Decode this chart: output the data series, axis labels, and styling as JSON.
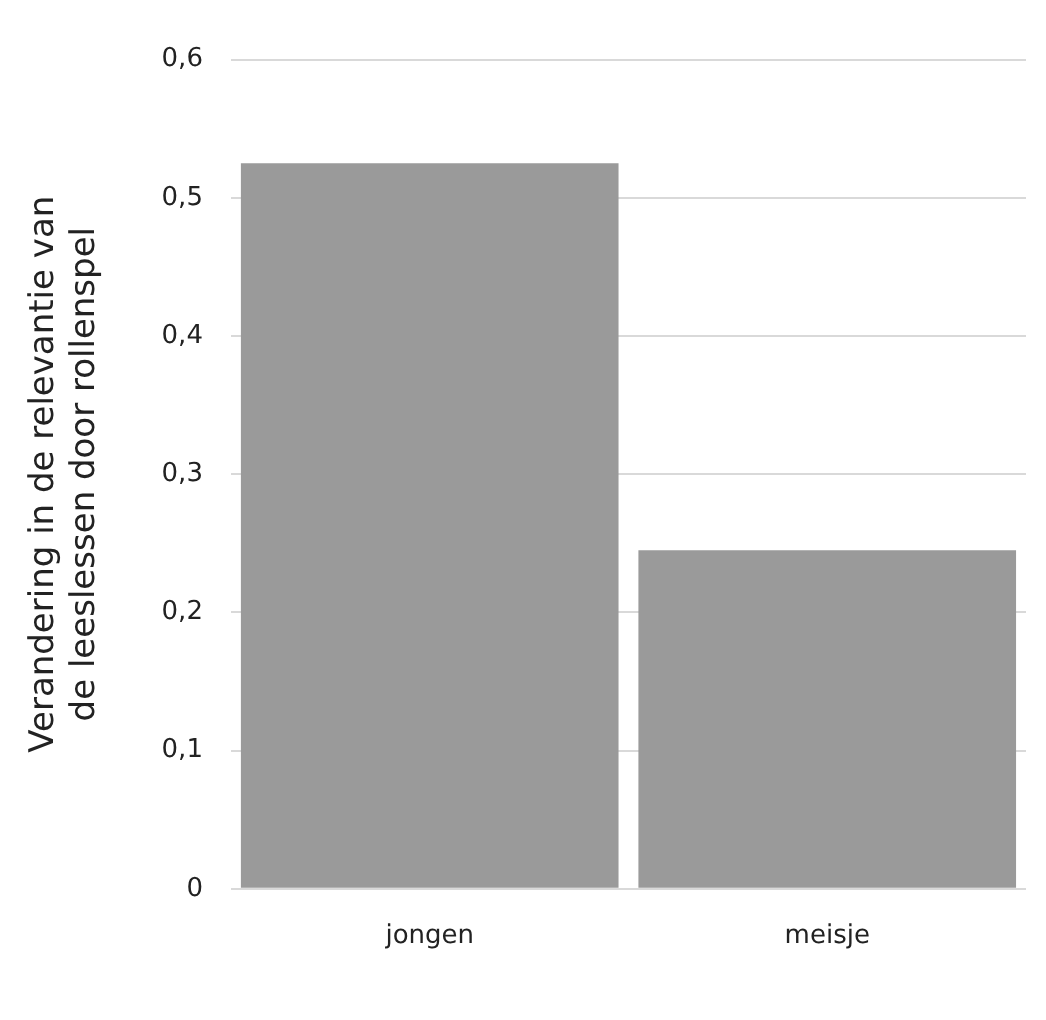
{
  "chart_data": {
    "type": "bar",
    "ylabel": "Verandering in de relevantie van de leeslessen door rollenspel",
    "categories": [
      "jongen",
      "meisje"
    ],
    "values": [
      0.525,
      0.245
    ],
    "color": "#9a9a9a",
    "ylim": [
      0,
      0.6
    ],
    "yticks": [
      0,
      {
        "value": 0.1,
        "label": "0,1"
      },
      {
        "value": 0.2,
        "label": "0,2"
      },
      {
        "value": 0.3,
        "label": "0,3"
      },
      {
        "value": 0.4,
        "label": "0,4"
      },
      {
        "value": 0.5,
        "label": "0,5"
      },
      {
        "value": 0.6,
        "label": "0,6"
      }
    ],
    "grid": "y",
    "legend": false
  }
}
